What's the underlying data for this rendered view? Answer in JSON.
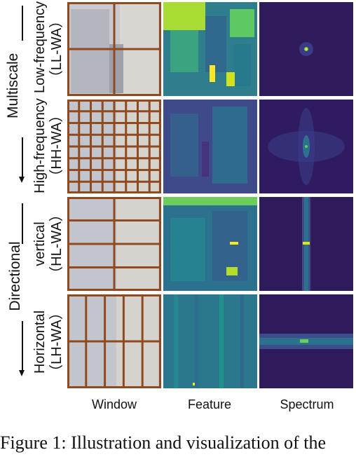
{
  "groups": {
    "multiscale": "Multiscale",
    "directional": "Directional"
  },
  "rows": [
    {
      "line1": "Low-frequency",
      "line2": "（LL-WA）"
    },
    {
      "line1": "High-frequency",
      "line2": "（HH-WA）"
    },
    {
      "line1": "vertical",
      "line2": "（HL-WA）"
    },
    {
      "line1": "Horizontal",
      "line2": "（LH-WA）"
    }
  ],
  "columns": {
    "window": "Window",
    "feature": "Feature",
    "spectrum": "Spectrum"
  },
  "caption": "Figure 1: Illustration and visualization of the",
  "colors": {
    "window_grid": "#8f4a1f",
    "feature_low": "#3b4f8c",
    "feature_mid": "#21918c",
    "feature_high": "#fde725",
    "spectrum_bg": "#2b1a5a"
  }
}
